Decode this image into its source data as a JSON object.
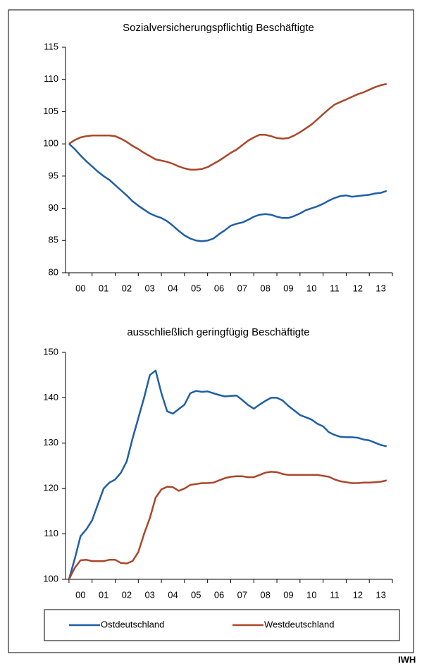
{
  "chart_data": [
    {
      "type": "line",
      "title": "Sozialversicherungspflichtig Beschäftigte",
      "x": [
        2000,
        2000.25,
        2000.5,
        2000.75,
        2001,
        2001.25,
        2001.5,
        2001.75,
        2002,
        2002.25,
        2002.5,
        2002.75,
        2003,
        2003.25,
        2003.5,
        2003.75,
        2004,
        2004.25,
        2004.5,
        2004.75,
        2005,
        2005.25,
        2005.5,
        2005.75,
        2006,
        2006.25,
        2006.5,
        2006.75,
        2007,
        2007.25,
        2007.5,
        2007.75,
        2008,
        2008.25,
        2008.5,
        2008.75,
        2009,
        2009.25,
        2009.5,
        2009.75,
        2010,
        2010.25,
        2010.5,
        2010.75,
        2011,
        2011.25,
        2011.5,
        2011.75,
        2012,
        2012.25,
        2012.5,
        2012.75,
        2013,
        2013.25,
        2013.5,
        2013.75
      ],
      "series": [
        {
          "name": "Ostdeutschland",
          "color": "#1f5fa8",
          "values": [
            100,
            99.2,
            98.2,
            97.3,
            96.5,
            95.7,
            95.0,
            94.4,
            93.6,
            92.8,
            92.0,
            91.1,
            90.4,
            89.8,
            89.2,
            88.8,
            88.5,
            88.0,
            87.3,
            86.5,
            85.8,
            85.3,
            85.0,
            84.9,
            85.0,
            85.3,
            86.0,
            86.6,
            87.3,
            87.6,
            87.8,
            88.2,
            88.7,
            89.0,
            89.1,
            89.0,
            88.7,
            88.5,
            88.5,
            88.8,
            89.2,
            89.7,
            90.0,
            90.3,
            90.7,
            91.2,
            91.6,
            91.9,
            92.0,
            91.8,
            91.9,
            92.0,
            92.1,
            92.3,
            92.4,
            92.7
          ]
        },
        {
          "name": "Westdeutschland",
          "color": "#a8482a",
          "values": [
            100,
            100.6,
            101.0,
            101.2,
            101.3,
            101.3,
            101.3,
            101.3,
            101.2,
            100.8,
            100.3,
            99.7,
            99.2,
            98.6,
            98.1,
            97.6,
            97.4,
            97.2,
            96.9,
            96.5,
            96.2,
            96.0,
            96.0,
            96.1,
            96.4,
            96.9,
            97.4,
            98.0,
            98.6,
            99.1,
            99.8,
            100.5,
            101.0,
            101.4,
            101.4,
            101.2,
            100.9,
            100.8,
            100.9,
            101.3,
            101.8,
            102.4,
            103.0,
            103.8,
            104.6,
            105.4,
            106.1,
            106.5,
            106.9,
            107.3,
            107.7,
            108.0,
            108.4,
            108.8,
            109.1,
            109.3
          ]
        }
      ],
      "xlim": [
        1999.85,
        2014
      ],
      "xticks": [
        {
          "value": 2000.5,
          "label": "00"
        },
        {
          "value": 2001.5,
          "label": "01"
        },
        {
          "value": 2002.5,
          "label": "02"
        },
        {
          "value": 2003.5,
          "label": "03"
        },
        {
          "value": 2004.5,
          "label": "04"
        },
        {
          "value": 2005.5,
          "label": "05"
        },
        {
          "value": 2006.5,
          "label": "06"
        },
        {
          "value": 2007.5,
          "label": "07"
        },
        {
          "value": 2008.5,
          "label": "08"
        },
        {
          "value": 2009.5,
          "label": "09"
        },
        {
          "value": 2010.5,
          "label": "10"
        },
        {
          "value": 2011.5,
          "label": "11"
        },
        {
          "value": 2012.5,
          "label": "12"
        },
        {
          "value": 2013.5,
          "label": "13"
        }
      ],
      "ylim": [
        80,
        115
      ],
      "yticks": [
        80,
        85,
        90,
        95,
        100,
        105,
        110,
        115
      ]
    },
    {
      "type": "line",
      "title": "ausschließlich geringfügig Beschäftigte",
      "x": [
        2000,
        2000.25,
        2000.5,
        2000.75,
        2001,
        2001.25,
        2001.5,
        2001.75,
        2002,
        2002.25,
        2002.5,
        2002.75,
        2003,
        2003.25,
        2003.5,
        2003.75,
        2004,
        2004.25,
        2004.5,
        2004.75,
        2005,
        2005.25,
        2005.5,
        2005.75,
        2006,
        2006.25,
        2006.5,
        2006.75,
        2007,
        2007.25,
        2007.5,
        2007.75,
        2008,
        2008.25,
        2008.5,
        2008.75,
        2009,
        2009.25,
        2009.5,
        2009.75,
        2010,
        2010.25,
        2010.5,
        2010.75,
        2011,
        2011.25,
        2011.5,
        2011.75,
        2012,
        2012.25,
        2012.5,
        2012.75,
        2013,
        2013.25,
        2013.5,
        2013.75
      ],
      "series": [
        {
          "color": "#1f5fa8",
          "values": [
            100,
            104.5,
            109.5,
            111,
            113,
            116.5,
            120,
            121.3,
            122,
            123.5,
            126,
            131,
            135.5,
            140,
            145,
            146,
            141,
            137,
            136.5,
            137.5,
            138.5,
            141,
            141.5,
            141.3,
            141.4,
            141,
            140.6,
            140.3,
            140.4,
            140.5,
            139.5,
            138.4,
            137.6,
            138.5,
            139.3,
            140,
            140,
            139.4,
            138.2,
            137.2,
            136.2,
            135.7,
            135.2,
            134.3,
            133.7,
            132.4,
            131.8,
            131.4,
            131.3,
            131.3,
            131.2,
            130.8,
            130.6,
            130.1,
            129.6,
            129.3
          ]
        },
        {
          "color": "#a8482a",
          "values": [
            100,
            102.5,
            104.2,
            104.3,
            104,
            104,
            104,
            104.3,
            104.3,
            103.6,
            103.5,
            104,
            106,
            110,
            113.5,
            118,
            119.8,
            120.4,
            120.3,
            119.5,
            120,
            120.8,
            121.0,
            121.2,
            121.2,
            121.3,
            121.8,
            122.3,
            122.6,
            122.7,
            122.7,
            122.5,
            122.5,
            123,
            123.5,
            123.7,
            123.6,
            123.2,
            123,
            123,
            123,
            123,
            123,
            123,
            122.8,
            122.6,
            122,
            121.6,
            121.4,
            121.2,
            121.2,
            121.3,
            121.3,
            121.4,
            121.5,
            121.8
          ]
        }
      ],
      "xlim": [
        1999.85,
        2014
      ],
      "xticks": [
        {
          "value": 2000.5,
          "label": "00"
        },
        {
          "value": 2001.5,
          "label": "01"
        },
        {
          "value": 2002.5,
          "label": "02"
        },
        {
          "value": 2003.5,
          "label": "03"
        },
        {
          "value": 2004.5,
          "label": "04"
        },
        {
          "value": 2005.5,
          "label": "05"
        },
        {
          "value": 2006.5,
          "label": "06"
        },
        {
          "value": 2007.5,
          "label": "07"
        },
        {
          "value": 2008.5,
          "label": "08"
        },
        {
          "value": 2009.5,
          "label": "09"
        },
        {
          "value": 2010.5,
          "label": "10"
        },
        {
          "value": 2011.5,
          "label": "11"
        },
        {
          "value": 2012.5,
          "label": "12"
        },
        {
          "value": 2013.5,
          "label": "13"
        }
      ],
      "ylim": [
        100,
        150
      ],
      "yticks": [
        100,
        110,
        120,
        130,
        140,
        150
      ]
    }
  ],
  "footer": "IWH"
}
